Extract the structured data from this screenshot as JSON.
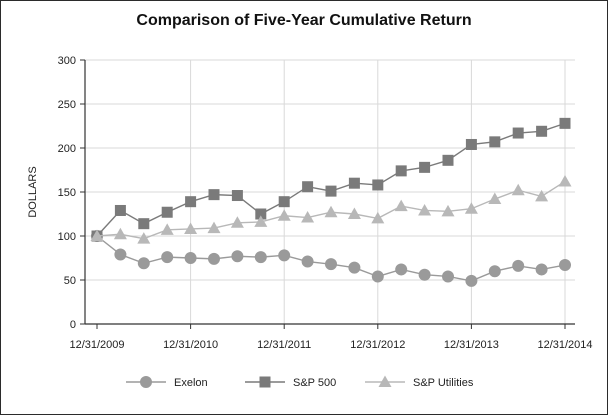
{
  "chart_data": {
    "type": "line",
    "title": "Comparison of Five-Year Cumulative Return",
    "ylabel": "DOLLARS",
    "xlabel": "",
    "ylim": [
      0,
      300
    ],
    "yticks": [
      0,
      50,
      100,
      150,
      200,
      250,
      300
    ],
    "x_tick_labels": [
      "12/31/2009",
      "12/31/2010",
      "12/31/2011",
      "12/31/2012",
      "12/31/2013",
      "12/31/2014"
    ],
    "x_points_per_year": 4,
    "grid": "vertical and horizontal at ticks",
    "legend_position": "bottom",
    "series": [
      {
        "name": "Exelon",
        "marker": "circle",
        "color": "#9a9a9a",
        "values": [
          100,
          79,
          69,
          76,
          75,
          74,
          77,
          76,
          78,
          71,
          68,
          64,
          54,
          62,
          56,
          54,
          49,
          60,
          66,
          62,
          67
        ]
      },
      {
        "name": "S&P 500",
        "marker": "square",
        "color": "#7a7a7a",
        "values": [
          100,
          129,
          114,
          127,
          139,
          147,
          146,
          125,
          139,
          156,
          151,
          160,
          158,
          174,
          178,
          186,
          204,
          207,
          217,
          219,
          228
        ]
      },
      {
        "name": "S&P Utilities",
        "marker": "triangle",
        "color": "#b8b8b8",
        "values": [
          100,
          102,
          97,
          107,
          108,
          109,
          115,
          116,
          123,
          121,
          127,
          125,
          120,
          134,
          129,
          128,
          131,
          142,
          152,
          145,
          162
        ]
      }
    ]
  }
}
